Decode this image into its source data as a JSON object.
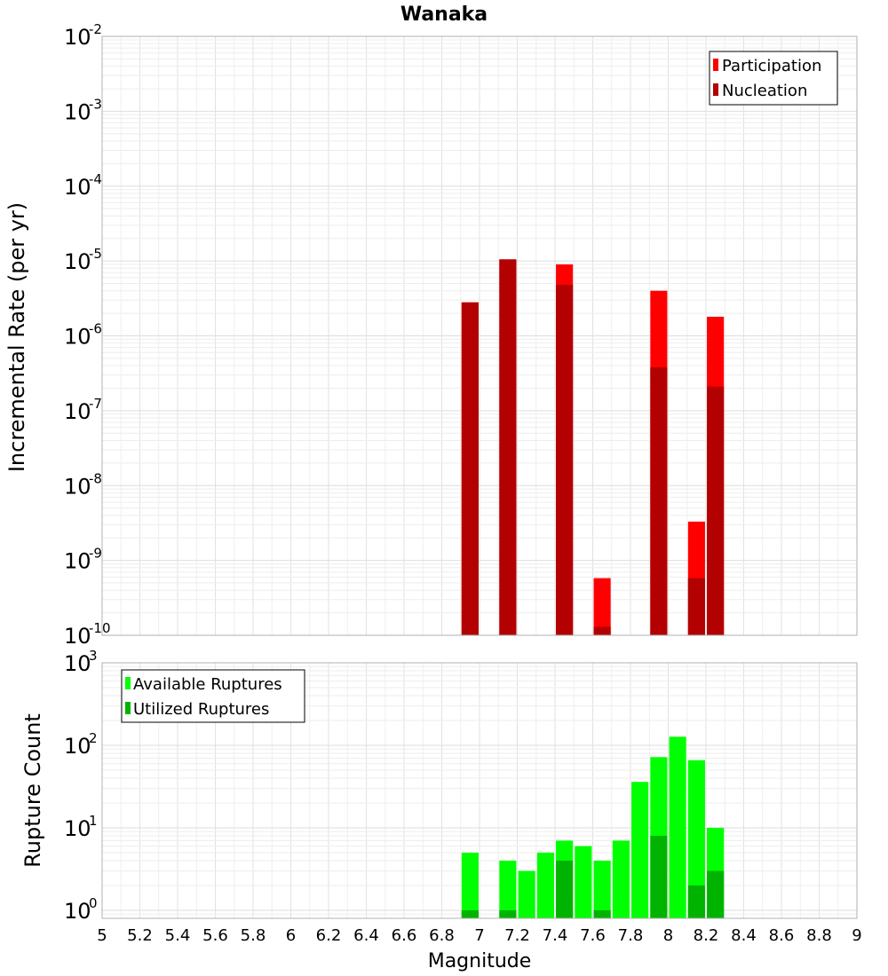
{
  "chart_data": [
    {
      "type": "bar",
      "title": "Wanaka",
      "ylabel": "Incremental Rate (per yr)",
      "yscale": "log",
      "ylim": [
        1e-10,
        0.01
      ],
      "xlim": [
        5,
        9
      ],
      "bar_width": 0.09,
      "grid": true,
      "legend_position": "top-right",
      "y_ticks": [
        {
          "base": "10",
          "exp": "-10",
          "value": 1e-10
        },
        {
          "base": "10",
          "exp": "-9",
          "value": 1e-09
        },
        {
          "base": "10",
          "exp": "-8",
          "value": 1e-08
        },
        {
          "base": "10",
          "exp": "-7",
          "value": 1e-07
        },
        {
          "base": "10",
          "exp": "-6",
          "value": 1e-06
        },
        {
          "base": "10",
          "exp": "-5",
          "value": 1e-05
        },
        {
          "base": "10",
          "exp": "-4",
          "value": 0.0001
        },
        {
          "base": "10",
          "exp": "-3",
          "value": 0.001
        },
        {
          "base": "10",
          "exp": "-2",
          "value": 0.01
        }
      ],
      "series": [
        {
          "name": "Participation",
          "color": "#ff0000",
          "points": [
            {
              "x": 6.95,
              "y": 2.8e-06
            },
            {
              "x": 7.15,
              "y": 1.05e-05
            },
            {
              "x": 7.45,
              "y": 9e-06
            },
            {
              "x": 7.65,
              "y": 5.8e-10
            },
            {
              "x": 7.95,
              "y": 4e-06
            },
            {
              "x": 8.15,
              "y": 3.3e-09
            },
            {
              "x": 8.25,
              "y": 1.8e-06
            }
          ]
        },
        {
          "name": "Nucleation",
          "color": "#b30000",
          "points": [
            {
              "x": 6.95,
              "y": 2.8e-06
            },
            {
              "x": 7.15,
              "y": 1.05e-05
            },
            {
              "x": 7.45,
              "y": 4.8e-06
            },
            {
              "x": 7.65,
              "y": 1.3e-10
            },
            {
              "x": 7.95,
              "y": 3.8e-07
            },
            {
              "x": 8.15,
              "y": 5.8e-10
            },
            {
              "x": 8.25,
              "y": 2.1e-07
            }
          ]
        }
      ]
    },
    {
      "type": "bar",
      "ylabel": "Rupture Count",
      "xlabel": "Magnitude",
      "yscale": "log",
      "ylim": [
        0.8,
        1000
      ],
      "xlim": [
        5,
        9
      ],
      "bar_width": 0.09,
      "grid": true,
      "legend_position": "top-left",
      "x_ticks": [
        "5",
        "5.2",
        "5.4",
        "5.6",
        "5.8",
        "6",
        "6.2",
        "6.4",
        "6.6",
        "6.8",
        "7",
        "7.2",
        "7.4",
        "7.6",
        "7.8",
        "8",
        "8.2",
        "8.4",
        "8.6",
        "8.8",
        "9"
      ],
      "y_ticks": [
        {
          "base": "10",
          "exp": "0",
          "value": 1
        },
        {
          "base": "10",
          "exp": "1",
          "value": 10
        },
        {
          "base": "10",
          "exp": "2",
          "value": 100
        },
        {
          "base": "10",
          "exp": "3",
          "value": 1000
        }
      ],
      "series": [
        {
          "name": "Available Ruptures",
          "color": "#00ff00",
          "points": [
            {
              "x": 6.95,
              "y": 5
            },
            {
              "x": 7.15,
              "y": 4
            },
            {
              "x": 7.25,
              "y": 3
            },
            {
              "x": 7.35,
              "y": 5
            },
            {
              "x": 7.45,
              "y": 7
            },
            {
              "x": 7.55,
              "y": 6
            },
            {
              "x": 7.65,
              "y": 4
            },
            {
              "x": 7.75,
              "y": 7
            },
            {
              "x": 7.85,
              "y": 36
            },
            {
              "x": 7.95,
              "y": 72
            },
            {
              "x": 8.05,
              "y": 127
            },
            {
              "x": 8.15,
              "y": 66
            },
            {
              "x": 8.25,
              "y": 10
            }
          ]
        },
        {
          "name": "Utilized Ruptures",
          "color": "#00b300",
          "points": [
            {
              "x": 6.95,
              "y": 1
            },
            {
              "x": 7.15,
              "y": 1
            },
            {
              "x": 7.45,
              "y": 4
            },
            {
              "x": 7.65,
              "y": 1
            },
            {
              "x": 7.95,
              "y": 8
            },
            {
              "x": 8.15,
              "y": 2
            },
            {
              "x": 8.25,
              "y": 3
            }
          ]
        }
      ]
    }
  ]
}
